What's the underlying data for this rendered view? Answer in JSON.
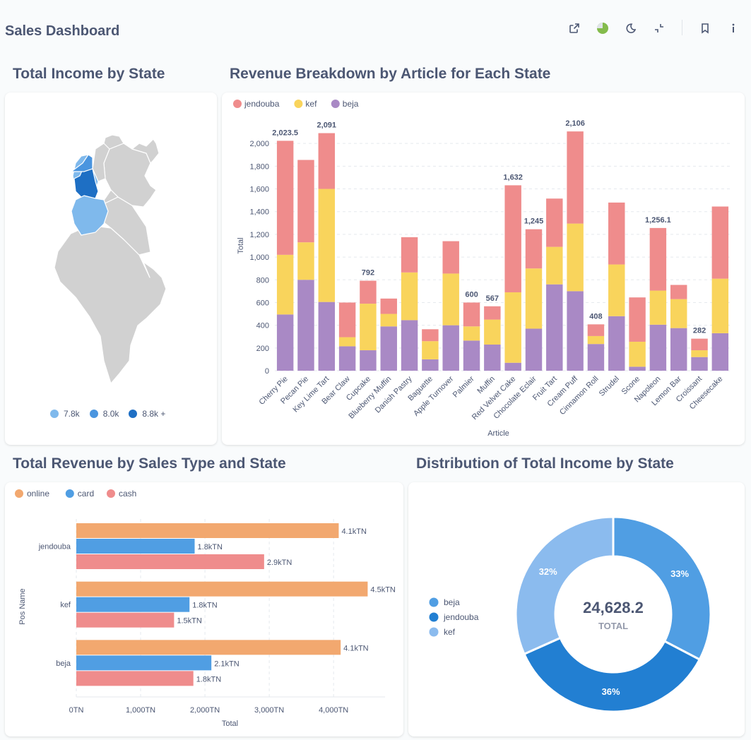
{
  "header": {
    "title": "Sales Dashboard",
    "icons": [
      "external-link-icon",
      "refresh-pie-icon",
      "moon-icon",
      "collapse-icon",
      "bookmark-icon",
      "info-icon"
    ]
  },
  "colors": {
    "jendouba": "#ef8c8c",
    "kef": "#f9d45c",
    "beja": "#a989c5",
    "online": "#f2a86f",
    "card": "#509ee3",
    "cash": "#ef8c8c",
    "map_low": "#7fb9ec",
    "map_mid": "#4a95df",
    "map_high": "#1e6fc4",
    "map_base": "#d1d1d1",
    "donut_beja": "#509ee3",
    "donut_jendouba": "#227fd2",
    "donut_kef": "#8bbbee"
  },
  "map_panel": {
    "title": "Total Income by State",
    "legend": [
      {
        "label": "7.8k",
        "color": "#7fb9ec"
      },
      {
        "label": "8.0k",
        "color": "#4a95df"
      },
      {
        "label": "8.8k +",
        "color": "#1e6fc4"
      }
    ]
  },
  "revenue_panel": {
    "title": "Revenue Breakdown by Article for Each State",
    "legend": [
      "jendouba",
      "kef",
      "beja"
    ]
  },
  "sales_type_panel": {
    "title": "Total Revenue by Sales Type and State",
    "legend": [
      "online",
      "card",
      "cash"
    ]
  },
  "donut_panel": {
    "title": "Distribution of Total Income by State",
    "legend": [
      "beja",
      "jendouba",
      "kef"
    ],
    "total_value": "24,628.2",
    "total_label": "TOTAL"
  },
  "chart_data": [
    {
      "type": "bar",
      "stacked": true,
      "title": "Revenue Breakdown by Article for Each State",
      "xlabel": "Article",
      "ylabel": "Total",
      "ylim": [
        0,
        2200
      ],
      "yticks": [
        0,
        200,
        400,
        600,
        800,
        1000,
        1200,
        1400,
        1600,
        1800,
        2000
      ],
      "ytick_labels": [
        "0",
        "200",
        "400",
        "600",
        "800",
        "1,000",
        "1,200",
        "1,400",
        "1,600",
        "1,800",
        "2,000"
      ],
      "grid": true,
      "legend_position": "top-left",
      "categories": [
        "Cherry Pie",
        "Pecan Pie",
        "Key Lime Tart",
        "Bear Claw",
        "Cupcake",
        "Blueberry Muffin",
        "Danish Pastry",
        "Baguette",
        "Apple Turnover",
        "Palmier",
        "Muffin",
        "Red Velvet Cake",
        "Chocolate Eclair",
        "Fruit Tart",
        "Cream Puff",
        "Cinnamon Roll",
        "Strudel",
        "Scone",
        "Napoleon",
        "Lemon Bar",
        "Croissant",
        "Cheesecake"
      ],
      "series": [
        {
          "name": "beja",
          "values": [
            495,
            800,
            605,
            215,
            180,
            390,
            445,
            100,
            400,
            265,
            230,
            70,
            370,
            760,
            700,
            235,
            480,
            35,
            405,
            375,
            120,
            330
          ]
        },
        {
          "name": "kef",
          "values": [
            525,
            330,
            995,
            80,
            410,
            110,
            420,
            160,
            455,
            125,
            220,
            620,
            530,
            330,
            595,
            70,
            455,
            220,
            300,
            255,
            60,
            480
          ]
        },
        {
          "name": "jendouba",
          "values": [
            1003.5,
            725,
            491,
            305,
            202,
            135,
            310,
            105,
            285,
            210,
            117,
            942,
            345,
            425,
            811,
            103,
            545,
            390,
            551.1,
            125,
            102,
            635
          ]
        }
      ],
      "data_labels": [
        {
          "category": "Cherry Pie",
          "label": "2,023.5"
        },
        {
          "category": "Key Lime Tart",
          "label": "2,091"
        },
        {
          "category": "Cupcake",
          "label": "792"
        },
        {
          "category": "Palmier",
          "label": "600"
        },
        {
          "category": "Muffin",
          "label": "567"
        },
        {
          "category": "Red Velvet Cake",
          "label": "1,632"
        },
        {
          "category": "Chocolate Eclair",
          "label": "1,245"
        },
        {
          "category": "Cream Puff",
          "label": "2,106"
        },
        {
          "category": "Cinnamon Roll",
          "label": "408"
        },
        {
          "category": "Napoleon",
          "label": "1,256.1"
        },
        {
          "category": "Croissant",
          "label": "282"
        }
      ]
    },
    {
      "type": "bar",
      "orientation": "horizontal",
      "title": "Total Revenue by Sales Type and State",
      "xlabel": "Total",
      "ylabel": "Pos Name",
      "xlim": [
        0,
        4800
      ],
      "xticks": [
        0,
        1000,
        2000,
        3000,
        4000
      ],
      "xtick_labels": [
        "0TN",
        "1,000TN",
        "2,000TN",
        "3,000TN",
        "4,000TN"
      ],
      "grid": true,
      "legend_position": "top-left",
      "categories": [
        "jendouba",
        "kef",
        "beja"
      ],
      "series": [
        {
          "name": "online",
          "values": [
            4080,
            4530,
            4110
          ],
          "labels": [
            "4.1kTN",
            "4.5kTN",
            "4.1kTN"
          ]
        },
        {
          "name": "card",
          "values": [
            1840,
            1760,
            2100
          ],
          "labels": [
            "1.8kTN",
            "1.8kTN",
            "2.1kTN"
          ]
        },
        {
          "name": "cash",
          "values": [
            2920,
            1520,
            1820
          ],
          "labels": [
            "2.9kTN",
            "1.5kTN",
            "1.8kTN"
          ]
        }
      ]
    },
    {
      "type": "pie",
      "donut": true,
      "title": "Distribution of Total Income by State",
      "total": "24,628.2",
      "legend_position": "left",
      "slices": [
        {
          "name": "beja",
          "percent": 33,
          "label": "33%"
        },
        {
          "name": "jendouba",
          "percent": 36,
          "label": "36%"
        },
        {
          "name": "kef",
          "percent": 32,
          "label": "32%"
        }
      ]
    }
  ]
}
